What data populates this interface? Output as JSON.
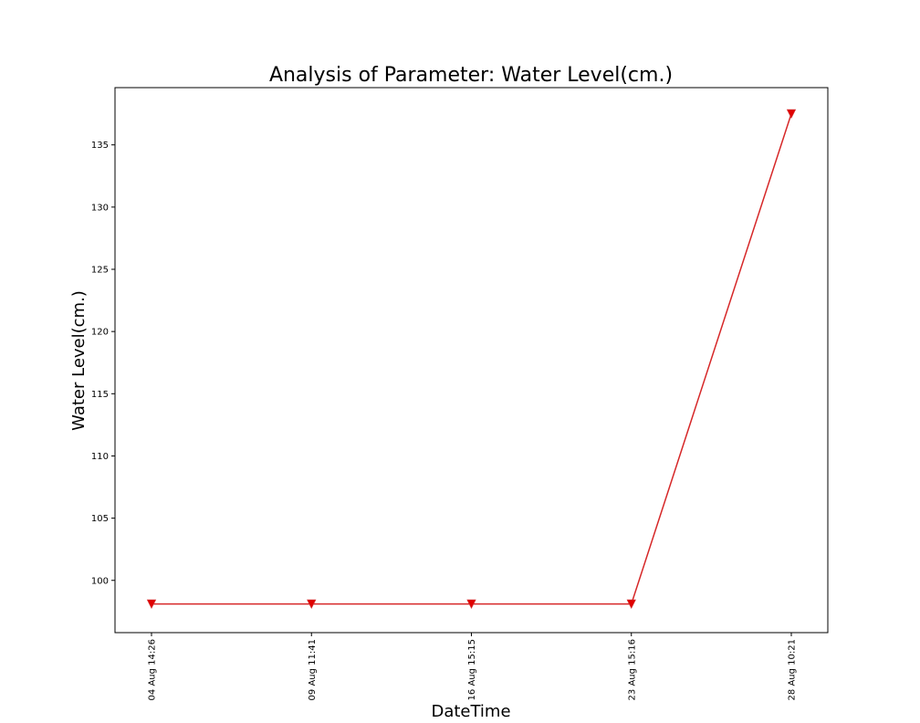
{
  "chart_data": {
    "type": "line",
    "title": "Analysis of Parameter: Water Level(cm.)",
    "xlabel": "DateTime",
    "ylabel": "Water Level(cm.)",
    "categories": [
      "04 Aug 14:26",
      "09 Aug 11:41",
      "16 Aug 15:15",
      "23 Aug 15:16",
      "28 Aug 10:21"
    ],
    "series": [
      {
        "values": [
          98.1,
          98.1,
          98.1,
          98.1,
          137.5
        ]
      }
    ],
    "yticks": [
      100,
      105,
      110,
      115,
      120,
      125,
      130,
      135
    ],
    "ylim": [
      95.8,
      139.6
    ],
    "grid": false,
    "legend": "none",
    "colors": {
      "line": "#d62728",
      "marker": "#e00000",
      "axes": "#000000"
    },
    "marker": "triangle-down"
  }
}
